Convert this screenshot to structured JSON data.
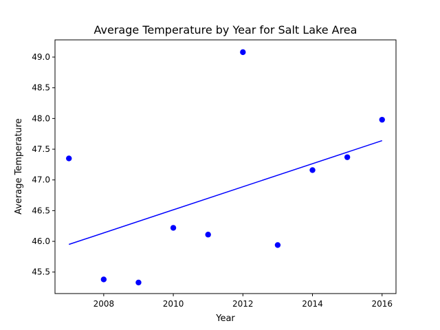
{
  "chart_data": {
    "type": "scatter",
    "title": "Average Temperature by Year for Salt Lake Area",
    "xlabel": "Year",
    "ylabel": "Average Temperature",
    "xlim": [
      2006.6,
      2016.4
    ],
    "ylim": [
      45.15,
      49.28
    ],
    "grid": false,
    "x_ticks": [
      2008,
      2010,
      2012,
      2014,
      2016
    ],
    "y_ticks": [
      45.5,
      46.0,
      46.5,
      47.0,
      47.5,
      48.0,
      48.5,
      49.0
    ],
    "series": [
      {
        "type": "scatter",
        "color": "#0000ff",
        "points": [
          {
            "x": 2007,
            "y": 47.35
          },
          {
            "x": 2008,
            "y": 45.38
          },
          {
            "x": 2009,
            "y": 45.33
          },
          {
            "x": 2010,
            "y": 46.22
          },
          {
            "x": 2011,
            "y": 46.11
          },
          {
            "x": 2012,
            "y": 49.08
          },
          {
            "x": 2013,
            "y": 45.94
          },
          {
            "x": 2014,
            "y": 47.16
          },
          {
            "x": 2015,
            "y": 47.37
          },
          {
            "x": 2016,
            "y": 47.98
          }
        ]
      },
      {
        "type": "line",
        "color": "#0000ff",
        "points": [
          {
            "x": 2007,
            "y": 45.95
          },
          {
            "x": 2016,
            "y": 47.64
          }
        ]
      }
    ]
  }
}
